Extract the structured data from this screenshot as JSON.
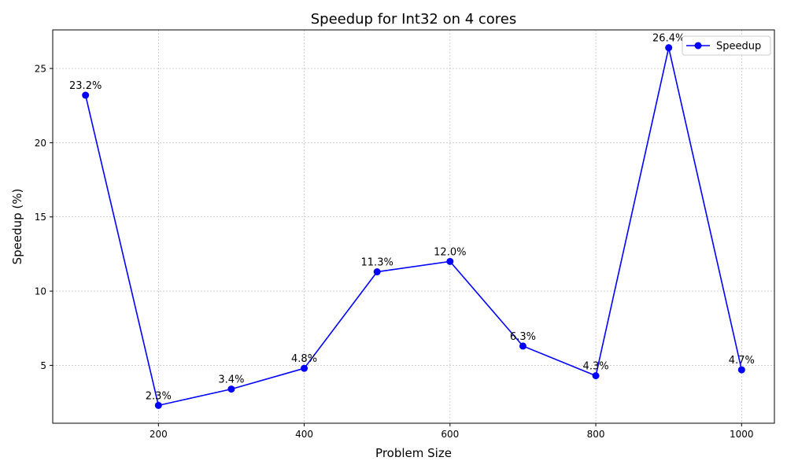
{
  "chart_data": {
    "type": "line",
    "title": "Speedup for Int32 on 4 cores",
    "xlabel": "Problem Size",
    "ylabel": "Speedup (%)",
    "x": [
      100,
      200,
      300,
      400,
      500,
      600,
      700,
      800,
      900,
      1000
    ],
    "series": [
      {
        "name": "Speedup",
        "color": "#0000ff",
        "marker": "circle",
        "values": [
          23.2,
          2.3,
          3.4,
          4.8,
          11.3,
          12.0,
          6.3,
          4.3,
          26.4,
          4.7
        ],
        "labels": [
          "23.2%",
          "2.3%",
          "3.4%",
          "4.8%",
          "11.3%",
          "12.0%",
          "6.3%",
          "4.3%",
          "26.4%",
          "4.7%"
        ]
      }
    ],
    "xlim": [
      55,
      1045
    ],
    "ylim": [
      1.1,
      27.6
    ],
    "xticks": [
      200,
      400,
      600,
      800,
      1000
    ],
    "xtick_labels": [
      "200",
      "400",
      "600",
      "800",
      "1000"
    ],
    "yticks": [
      5,
      10,
      15,
      20,
      25
    ],
    "ytick_labels": [
      "5",
      "10",
      "15",
      "20",
      "25"
    ],
    "grid": true,
    "legend_position": "top-right"
  }
}
